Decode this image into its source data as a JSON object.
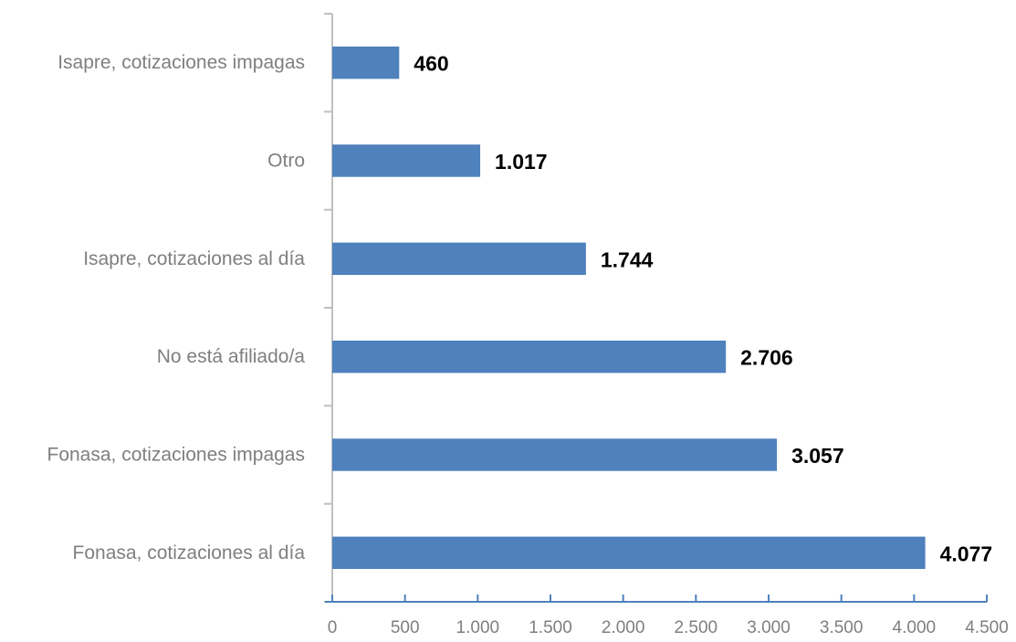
{
  "chart_data": {
    "type": "bar",
    "orientation": "horizontal",
    "title": "",
    "xlabel": "",
    "ylabel": "",
    "categories": [
      "Isapre, cotizaciones impagas",
      "Otro",
      "Isapre, cotizaciones al día",
      "No está afiliado/a",
      "Fonasa, cotizaciones impagas",
      "Fonasa, cotizaciones al día"
    ],
    "values": [
      460,
      1017,
      1744,
      2706,
      3057,
      4077
    ],
    "value_labels": [
      "460",
      "1.017",
      "1.744",
      "2.706",
      "3.057",
      "4.077"
    ],
    "xlim": [
      0,
      4500
    ],
    "x_ticks": [
      0,
      500,
      1000,
      1500,
      2000,
      2500,
      3000,
      3500,
      4000,
      4500
    ],
    "x_tick_labels": [
      "0",
      "500",
      "1.000",
      "1.500",
      "2.000",
      "2.500",
      "3.000",
      "3.500",
      "4.000",
      "4.500"
    ],
    "grid": false,
    "legend": "none",
    "colors": {
      "bar": "#4f81bd",
      "axis": "#4f81bd",
      "category_axis": "#bfbfbf",
      "label_text": "#7f7f7f",
      "value_text": "#000000"
    }
  }
}
